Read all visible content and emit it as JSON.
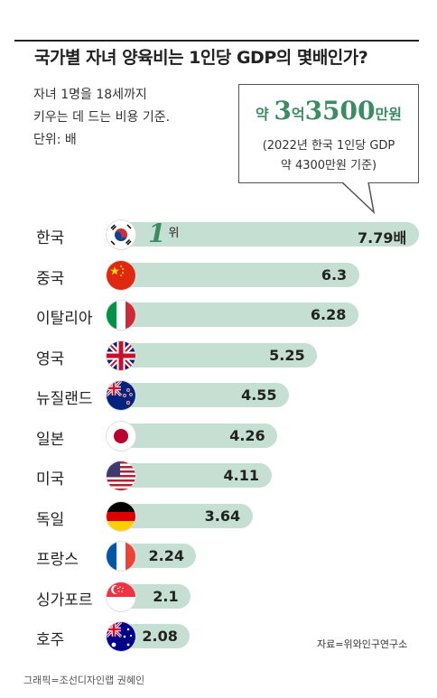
{
  "title": "국가별 자녀 양육비는 1인당 GDP의 몇배인가?",
  "description": [
    "자녀 1명을 18세까지",
    "키우는 데 드는 비용 기준.",
    "단위: 배"
  ],
  "callout": {
    "prefix": "약 ",
    "num1": "3",
    "unit1": "억",
    "num2": "3500",
    "unit2": "만원",
    "note_line1": "(2022년 한국 1인당 GDP",
    "note_line2": "약 4300만원 기준)"
  },
  "rank_label": {
    "number": "1",
    "suffix": "위"
  },
  "source": "자료=위와인구연구소",
  "credit": "그래픽=조선디자인랩 권혜인",
  "colors": {
    "accent": "#3c8c63",
    "bar": "#c5dfd2"
  },
  "chart_data": {
    "type": "bar",
    "orientation": "horizontal",
    "title": "국가별 자녀 양육비는 1인당 GDP의 몇배인가?",
    "unit": "배",
    "categories": [
      "한국",
      "중국",
      "이탈리아",
      "영국",
      "뉴질랜드",
      "일본",
      "미국",
      "독일",
      "프랑스",
      "싱가포르",
      "호주"
    ],
    "values": [
      7.79,
      6.3,
      6.28,
      5.25,
      4.55,
      4.26,
      4.11,
      3.64,
      2.24,
      2.1,
      2.08
    ],
    "value_labels": [
      "7.79배",
      "6.3",
      "6.28",
      "5.25",
      "4.55",
      "4.26",
      "4.11",
      "3.64",
      "2.24",
      "2.1",
      "2.08"
    ],
    "flags": [
      "korea-flag-icon",
      "china-flag-icon",
      "italy-flag-icon",
      "uk-flag-icon",
      "new-zealand-flag-icon",
      "japan-flag-icon",
      "usa-flag-icon",
      "germany-flag-icon",
      "france-flag-icon",
      "singapore-flag-icon",
      "australia-flag-icon"
    ],
    "xlim": [
      0,
      7.79
    ]
  }
}
